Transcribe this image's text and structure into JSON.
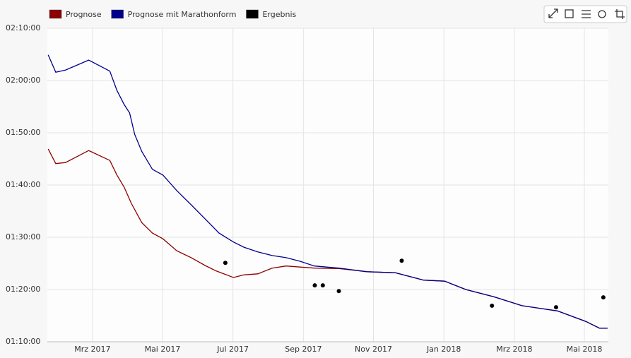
{
  "chart_data": {
    "type": "line",
    "xlim": [
      2017.06,
      2018.39
    ],
    "xticks": [
      {
        "value": 2017.167,
        "label": "Mrz 2017"
      },
      {
        "value": 2017.333,
        "label": "Mai 2017"
      },
      {
        "value": 2017.5,
        "label": "Jul 2017"
      },
      {
        "value": 2017.667,
        "label": "Sep 2017"
      },
      {
        "value": 2017.833,
        "label": "Nov 2017"
      },
      {
        "value": 2018.0,
        "label": "Jan 2018"
      },
      {
        "value": 2018.167,
        "label": "Mrz 2018"
      },
      {
        "value": 2018.333,
        "label": "Mai 2018"
      }
    ],
    "ylim": [
      70,
      130
    ],
    "yticks": [
      {
        "value": 70,
        "label": "01:10:00"
      },
      {
        "value": 80,
        "label": "01:20:00"
      },
      {
        "value": 90,
        "label": "01:30:00"
      },
      {
        "value": 100,
        "label": "01:40:00"
      },
      {
        "value": 110,
        "label": "01:50:00"
      },
      {
        "value": 120,
        "label": "02:00:00"
      },
      {
        "value": 130,
        "label": "02:10:00"
      }
    ],
    "grid": true,
    "series": [
      {
        "name": "Prognose",
        "color": "#8b0000",
        "kind": "line",
        "x": [
          2017.062,
          2017.08,
          2017.103,
          2017.158,
          2017.208,
          2017.225,
          2017.242,
          2017.259,
          2017.284,
          2017.309,
          2017.334,
          2017.367,
          2017.401,
          2017.434,
          2017.459,
          2017.501,
          2017.526,
          2017.559,
          2017.593,
          2017.626,
          2017.659,
          2017.693,
          2017.751,
          2017.818,
          2017.885,
          2017.952,
          2018.002,
          2018.052,
          2018.119,
          2018.185,
          2018.269,
          2018.336,
          2018.369,
          2018.388
        ],
        "values": [
          106.9,
          104.1,
          104.3,
          106.6,
          104.7,
          101.9,
          99.6,
          96.5,
          92.8,
          90.8,
          89.7,
          87.4,
          86.1,
          84.6,
          83.6,
          82.3,
          82.8,
          83.0,
          84.1,
          84.5,
          84.3,
          84.1,
          84.0,
          83.4,
          83.2,
          81.8,
          81.6,
          80.0,
          78.6,
          76.9,
          75.9,
          73.9,
          72.6,
          72.6
        ]
      },
      {
        "name": "Prognose mit Marathonform",
        "color": "#00008b",
        "kind": "line",
        "x": [
          2017.062,
          2017.08,
          2017.103,
          2017.158,
          2017.208,
          2017.225,
          2017.242,
          2017.255,
          2017.267,
          2017.284,
          2017.309,
          2017.334,
          2017.367,
          2017.401,
          2017.434,
          2017.467,
          2017.501,
          2017.526,
          2017.559,
          2017.593,
          2017.626,
          2017.659,
          2017.693,
          2017.751,
          2017.818,
          2017.885,
          2017.952,
          2018.002,
          2018.052,
          2018.119,
          2018.185,
          2018.269,
          2018.336,
          2018.369,
          2018.388
        ],
        "values": [
          124.9,
          121.6,
          122.0,
          123.9,
          121.8,
          118.1,
          115.4,
          113.8,
          109.7,
          106.4,
          103.0,
          101.9,
          98.9,
          96.2,
          93.5,
          90.8,
          89.1,
          88.1,
          87.2,
          86.5,
          86.1,
          85.4,
          84.5,
          84.1,
          83.4,
          83.2,
          81.8,
          81.6,
          80.0,
          78.6,
          76.9,
          75.9,
          73.9,
          72.6,
          72.6
        ]
      },
      {
        "name": "Ergebnis",
        "color": "#000000",
        "kind": "scatter",
        "x": [
          2017.482,
          2017.694,
          2017.713,
          2017.751,
          2017.9,
          2018.114,
          2018.266,
          2018.378
        ],
        "values": [
          85.1,
          80.8,
          80.8,
          79.7,
          85.5,
          76.9,
          76.6,
          78.5
        ]
      }
    ]
  }
}
